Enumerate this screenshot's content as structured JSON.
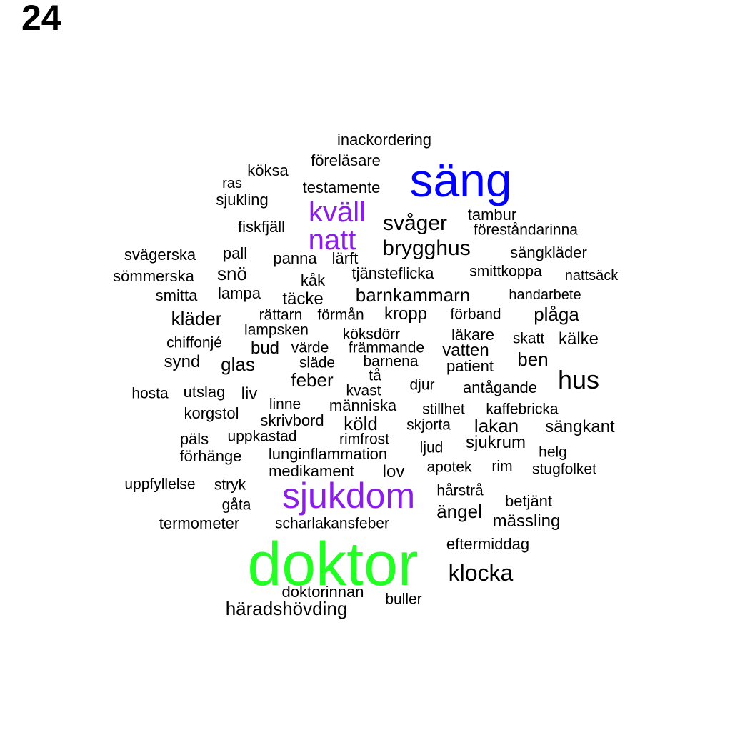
{
  "page_number": "24",
  "colors": {
    "default": "#000000",
    "purple": "#8a1ee6",
    "blue": "#0000ff",
    "green": "#22ff22"
  },
  "words": [
    {
      "text": "doktor",
      "color": "green"
    },
    {
      "text": "säng",
      "color": "blue"
    },
    {
      "text": "sjukdom",
      "color": "purple"
    },
    {
      "text": "kväll",
      "color": "purple"
    },
    {
      "text": "natt",
      "color": "purple"
    },
    {
      "text": "hus"
    },
    {
      "text": "klocka"
    },
    {
      "text": "svåger"
    },
    {
      "text": "brygghus"
    },
    {
      "text": "barnkammarn"
    },
    {
      "text": "inackordering"
    },
    {
      "text": "föreläsare"
    },
    {
      "text": "köksa"
    },
    {
      "text": "ras"
    },
    {
      "text": "testamente"
    },
    {
      "text": "sjukling"
    },
    {
      "text": "tambur"
    },
    {
      "text": "föreståndarinna"
    },
    {
      "text": "fiskfjäll"
    },
    {
      "text": "svägerska"
    },
    {
      "text": "pall"
    },
    {
      "text": "panna"
    },
    {
      "text": "lärft"
    },
    {
      "text": "sängkläder"
    },
    {
      "text": "sömmerska"
    },
    {
      "text": "snö"
    },
    {
      "text": "tjänsteflicka"
    },
    {
      "text": "smittkoppa"
    },
    {
      "text": "nattsäck"
    },
    {
      "text": "kåk"
    },
    {
      "text": "smitta"
    },
    {
      "text": "lampa"
    },
    {
      "text": "täcke"
    },
    {
      "text": "handarbete"
    },
    {
      "text": "kläder"
    },
    {
      "text": "rättarn"
    },
    {
      "text": "förmån"
    },
    {
      "text": "kropp"
    },
    {
      "text": "förband"
    },
    {
      "text": "plåga"
    },
    {
      "text": "lampsken"
    },
    {
      "text": "köksdörr"
    },
    {
      "text": "läkare"
    },
    {
      "text": "skatt"
    },
    {
      "text": "kälke"
    },
    {
      "text": "chiffonjé"
    },
    {
      "text": "bud"
    },
    {
      "text": "värde"
    },
    {
      "text": "främmande"
    },
    {
      "text": "vatten"
    },
    {
      "text": "synd"
    },
    {
      "text": "glas"
    },
    {
      "text": "släde"
    },
    {
      "text": "barnena"
    },
    {
      "text": "patient"
    },
    {
      "text": "ben"
    },
    {
      "text": "feber"
    },
    {
      "text": "tå"
    },
    {
      "text": "djur"
    },
    {
      "text": "antågande"
    },
    {
      "text": "hosta"
    },
    {
      "text": "utslag"
    },
    {
      "text": "liv"
    },
    {
      "text": "kvast"
    },
    {
      "text": "linne"
    },
    {
      "text": "människa"
    },
    {
      "text": "stillhet"
    },
    {
      "text": "kaffebricka"
    },
    {
      "text": "korgstol"
    },
    {
      "text": "skrivbord"
    },
    {
      "text": "köld"
    },
    {
      "text": "skjorta"
    },
    {
      "text": "lakan"
    },
    {
      "text": "sängkant"
    },
    {
      "text": "päls"
    },
    {
      "text": "uppkastad"
    },
    {
      "text": "rimfrost"
    },
    {
      "text": "ljud"
    },
    {
      "text": "sjukrum"
    },
    {
      "text": "förhänge"
    },
    {
      "text": "lunginflammation"
    },
    {
      "text": "helg"
    },
    {
      "text": "medikament"
    },
    {
      "text": "lov"
    },
    {
      "text": "apotek"
    },
    {
      "text": "rim"
    },
    {
      "text": "stugfolket"
    },
    {
      "text": "uppfyllelse"
    },
    {
      "text": "stryk"
    },
    {
      "text": "hårstrå"
    },
    {
      "text": "gåta"
    },
    {
      "text": "betjänt"
    },
    {
      "text": "ängel"
    },
    {
      "text": "termometer"
    },
    {
      "text": "scharlakansfeber"
    },
    {
      "text": "mässling"
    },
    {
      "text": "eftermiddag"
    },
    {
      "text": "doktorinnan"
    },
    {
      "text": "buller"
    },
    {
      "text": "häradshövding"
    }
  ]
}
